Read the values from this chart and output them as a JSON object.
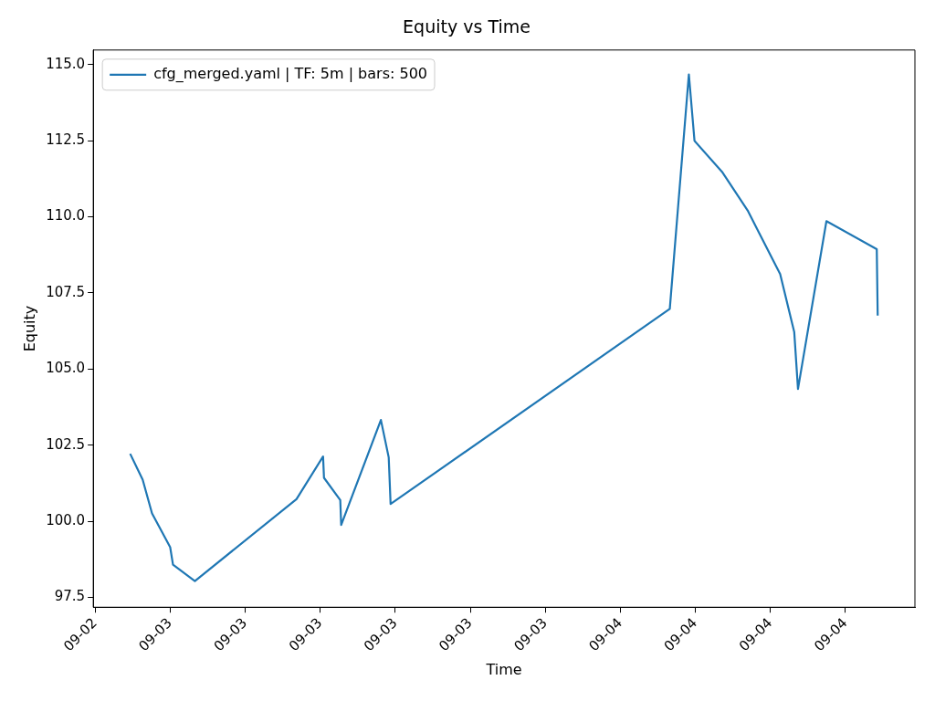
{
  "chart_data": {
    "type": "line",
    "title": "Equity vs Time",
    "xlabel": "Time",
    "ylabel": "Equity",
    "x": [
      "--09-02T21:52",
      "--09-02T22:32",
      "--09-02T23:02",
      "--09-03T00:00",
      "--09-03T00:09",
      "--09-03T01:19",
      "--09-03T06:44",
      "--09-03T08:09",
      "--09-03T08:12",
      "--09-03T09:04",
      "--09-03T09:07",
      "--09-03T11:14",
      "--09-03T11:39",
      "--09-03T11:45",
      "--09-04T02:38",
      "--09-04T03:39",
      "--09-04T03:57",
      "--09-04T05:25",
      "--09-04T06:47",
      "--09-04T08:31",
      "--09-04T09:16",
      "--09-04T09:28",
      "--09-04T10:59",
      "--09-04T13:40",
      "--09-04T13:43"
    ],
    "series": [
      {
        "name": "cfg_merged.yaml | TF: 5m | bars: 500",
        "color": "#1f77b4",
        "values": [
          102.22,
          101.37,
          100.26,
          99.15,
          98.58,
          98.04,
          100.73,
          102.13,
          101.43,
          100.7,
          99.88,
          103.33,
          102.1,
          100.57,
          106.98,
          114.68,
          112.5,
          111.48,
          110.21,
          108.12,
          106.22,
          104.35,
          109.86,
          108.94,
          106.76
        ]
      }
    ],
    "xlim": [
      "--09-02T19:54",
      "--09-04T15:42"
    ],
    "xticks": [
      {
        "value": "--09-02T20:00",
        "label": "09-02"
      },
      {
        "value": "--09-03T00:00",
        "label": "09-03"
      },
      {
        "value": "--09-03T04:00",
        "label": "09-03"
      },
      {
        "value": "--09-03T08:00",
        "label": "09-03"
      },
      {
        "value": "--09-03T12:00",
        "label": "09-03"
      },
      {
        "value": "--09-03T16:00",
        "label": "09-03"
      },
      {
        "value": "--09-03T20:00",
        "label": "09-03"
      },
      {
        "value": "--09-04T00:00",
        "label": "09-04"
      },
      {
        "value": "--09-04T04:00",
        "label": "09-04"
      },
      {
        "value": "--09-04T08:00",
        "label": "09-04"
      },
      {
        "value": "--09-04T12:00",
        "label": "09-04"
      }
    ],
    "ylim": [
      97.18,
      115.48
    ],
    "yticks": [
      {
        "value": 97.5,
        "label": "97.5"
      },
      {
        "value": 100,
        "label": "100.0"
      },
      {
        "value": 102.5,
        "label": "102.5"
      },
      {
        "value": 105,
        "label": "105.0"
      },
      {
        "value": 107.5,
        "label": "107.5"
      },
      {
        "value": 110,
        "label": "110.0"
      },
      {
        "value": 112.5,
        "label": "112.5"
      },
      {
        "value": 115,
        "label": "115.0"
      }
    ],
    "grid": false,
    "legend": "top left",
    "marker": "none",
    "line_style": "solid"
  }
}
